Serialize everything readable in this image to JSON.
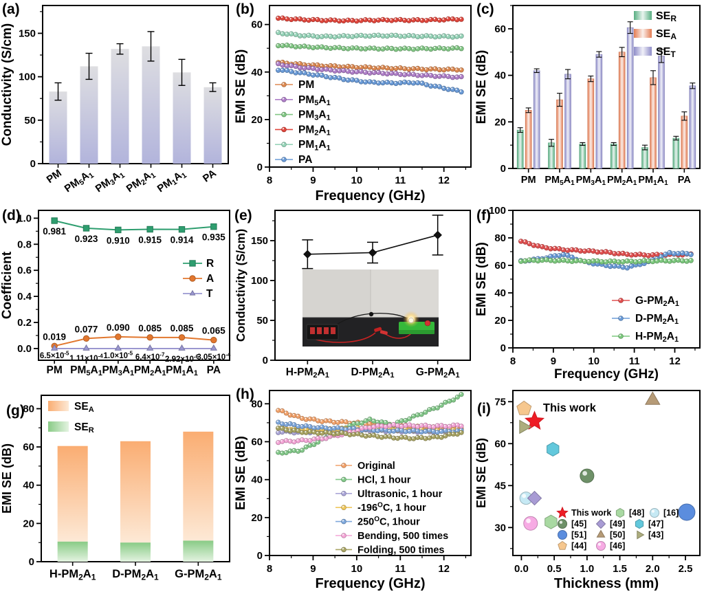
{
  "figure": {
    "background": "#ffffff",
    "panel_tags": [
      "(a)",
      "(b)",
      "(c)",
      "(d)",
      "(e)",
      "(f)",
      "(g)",
      "(h)",
      "(i)"
    ]
  },
  "chart_data": [
    {
      "id": "a",
      "tag": "(a)",
      "type": "bar",
      "render": "bar",
      "ylabel": "Conductivity (S/cm)",
      "categories": [
        "PM",
        "PM~5~A~1~",
        "PM~3~A~1~",
        "PM~2~A~1~",
        "PM~1~A~1~",
        "PA"
      ],
      "values": [
        83,
        112,
        132,
        135,
        105,
        88
      ],
      "errors": [
        10,
        15,
        6,
        17,
        15,
        5
      ],
      "ylim": [
        0,
        182
      ],
      "yticks": [
        0,
        50,
        100,
        150
      ],
      "yminor": 25,
      "bar_gradient": [
        "#DEDEE1",
        "#B2B4DC"
      ]
    },
    {
      "id": "b",
      "tag": "(b)",
      "type": "line",
      "render": "freq",
      "xlabel": "Frequency (GHz)",
      "ylabel": "EMI SE (dB)",
      "xlim": [
        8,
        12.62
      ],
      "xticks": [
        8,
        9,
        10,
        11,
        12
      ],
      "xminor": 0.5,
      "xrange": [
        8.2,
        12.4
      ],
      "ylim": [
        0,
        68
      ],
      "yticks": [
        0,
        20,
        40,
        60
      ],
      "yminor": 10,
      "series": [
        {
          "name": "PM",
          "color": "#DD8A52",
          "y": [
            44,
            43.2,
            42.6,
            42.2,
            41.9,
            41.6,
            41.3,
            41.1,
            41
          ]
        },
        {
          "name": "PM~5~A~1~",
          "color": "#AF7FC8",
          "y": [
            43.3,
            41.9,
            41,
            40.3,
            39.8,
            39.3,
            38.8,
            38.3,
            37.8
          ]
        },
        {
          "name": "PM~3~A~1~",
          "color": "#82C785",
          "y": [
            51.3,
            50.7,
            50.3,
            50,
            49.9,
            49.8,
            49.8,
            49.9,
            50
          ]
        },
        {
          "name": "PM~2~A~1~",
          "color": "#E0473D",
          "y": [
            62.6,
            62.1,
            61.8,
            61.6,
            61.8,
            61.9,
            61.8,
            62,
            62.3
          ]
        },
        {
          "name": "PM~1~A~1~",
          "color": "#97D4B9",
          "y": [
            56.5,
            55.4,
            54.9,
            55.1,
            55.3,
            55.3,
            55.1,
            55,
            54.9
          ]
        },
        {
          "name": "PA",
          "color": "#6B9BD7",
          "y": [
            41,
            39.6,
            38.3,
            36.8,
            35.7,
            35.4,
            35.6,
            33.7,
            31.8
          ]
        }
      ]
    },
    {
      "id": "c",
      "tag": "(c)",
      "type": "grouped-bar",
      "render": "groupbar",
      "ylabel": "EMI SE (dB)",
      "categories": [
        "PM",
        "PM~5~A~1~",
        "PM~3~A~1~",
        "PM~2~A~1~",
        "PM~1~A~1~",
        "PA"
      ],
      "ylim": [
        0,
        70
      ],
      "yticks": [
        0,
        20,
        40,
        60
      ],
      "yminor": 10,
      "series": [
        {
          "name": "SE~R~",
          "color": "#58AE82",
          "values": [
            16.5,
            11,
            10.5,
            10.5,
            9,
            13
          ],
          "errors": [
            1,
            1.5,
            0.6,
            0.6,
            1,
            0.8
          ]
        },
        {
          "name": "SE~A~",
          "color": "#E37C53",
          "values": [
            25,
            29.5,
            38.5,
            50,
            39,
            22.5
          ],
          "errors": [
            1,
            2.8,
            1.2,
            2,
            3,
            1.8
          ]
        },
        {
          "name": "SE~T~",
          "color": "#8E8CC8",
          "values": [
            42,
            40.5,
            49,
            60.5,
            48.3,
            35.5
          ],
          "errors": [
            0.8,
            2,
            1.2,
            2.5,
            2.8,
            1.2
          ]
        }
      ]
    },
    {
      "id": "d",
      "tag": "(d)",
      "type": "line",
      "render": "coef",
      "ylabel": "Coefficient",
      "categories": [
        "PM",
        "PM~5~A~1~",
        "PM~3~A~1~",
        "PM~2~A~1~",
        "PM~1~A~1~",
        "PA"
      ],
      "ylim": [
        -0.09,
        1.06
      ],
      "yticks": [
        0,
        0.2,
        0.4,
        0.6,
        0.8,
        1
      ],
      "ytick_labels": [
        "0.0",
        "0.2",
        "0.4",
        "0.6",
        "0.8",
        "1.0"
      ],
      "yminor": 0.1,
      "series": [
        {
          "name": "R",
          "marker": "square",
          "color": "#2E9E6F",
          "values": [
            0.981,
            0.923,
            0.91,
            0.915,
            0.914,
            0.935
          ],
          "labels": [
            "0.981",
            "0.923",
            "0.910",
            "0.915",
            "0.914",
            "0.935"
          ]
        },
        {
          "name": "A",
          "marker": "circle",
          "color": "#E2772E",
          "values": [
            0.019,
            0.077,
            0.09,
            0.085,
            0.085,
            0.065
          ],
          "labels": [
            "0.019",
            "0.077",
            "0.090",
            "0.085",
            "0.085",
            "0.065"
          ]
        },
        {
          "name": "T",
          "marker": "triangle",
          "color": "#9A97D0",
          "values": [
            0,
            0,
            0,
            0,
            0,
            0
          ],
          "labels": [
            "6.5×10^-5^",
            "1.11×10^-4^",
            "1.0×10^-5^",
            "6.4×10^-7^",
            "2.92×10^-6^",
            "3.05×10^-4^"
          ]
        }
      ]
    },
    {
      "id": "e",
      "tag": "(e)",
      "type": "line",
      "render": "linepts",
      "ylabel": "Conductivity (S/cm)",
      "categories": [
        "H-PM~2~A~1~",
        "D-PM~2~A~1~",
        "G-PM~2~A~1~"
      ],
      "values": [
        133,
        135,
        157
      ],
      "errors": [
        18,
        13,
        25
      ],
      "ylim": [
        0,
        188
      ],
      "yticks": [
        0,
        50,
        100,
        150
      ],
      "yminor": 25,
      "inset_photo_alt": "battery pack lighting a bulb on a green test board via red clip leads"
    },
    {
      "id": "f",
      "tag": "(f)",
      "type": "line",
      "render": "freq",
      "xlabel": "Frequency (GHz)",
      "ylabel": "EMI SE (dB)",
      "xlim": [
        8,
        12.62
      ],
      "xticks": [
        8,
        9,
        10,
        11,
        12
      ],
      "xminor": 0.5,
      "xrange": [
        8.2,
        12.4
      ],
      "ylim": [
        0,
        100
      ],
      "yticks": [
        0,
        20,
        40,
        60,
        80,
        100
      ],
      "yminor": 10,
      "series": [
        {
          "name": "G-PM~2~A~1~",
          "color": "#E05050",
          "y": [
            77.5,
            73.2,
            71.4,
            70.6,
            69.6,
            68,
            67.5,
            67.8,
            68
          ]
        },
        {
          "name": "D-PM~2~A~1~",
          "color": "#6B9BD7",
          "y": [
            63,
            65,
            68,
            62.5,
            60,
            58.5,
            62.5,
            69,
            68.3
          ]
        },
        {
          "name": "H-PM~2~A~1~",
          "color": "#7DC87E",
          "y": [
            63.3,
            63.8,
            63.4,
            63.1,
            62.8,
            62.8,
            63.1,
            63.4,
            63.4
          ]
        }
      ]
    },
    {
      "id": "g",
      "tag": "(g)",
      "type": "stacked-bar",
      "render": "stackbar",
      "ylabel": "EMI SE (dB)",
      "categories": [
        "H-PM~2~A~1~",
        "D-PM~2~A~1~",
        "G-PM~2~A~1~"
      ],
      "ylim": [
        0,
        87
      ],
      "yticks": [
        0,
        20,
        40,
        60,
        80
      ],
      "yminor": 10,
      "series": [
        {
          "name": "SE~A~",
          "gradient": [
            "#FAAD72",
            "#FDE9D6"
          ],
          "values": [
            50,
            53,
            57
          ]
        },
        {
          "name": "SE~R~",
          "gradient": [
            "#89CB86",
            "#E4F3E1"
          ],
          "values": [
            10.5,
            10,
            11
          ]
        }
      ],
      "totals": [
        60.5,
        63,
        68
      ]
    },
    {
      "id": "h",
      "tag": "(h)",
      "type": "line",
      "render": "freq",
      "xlabel": "Frequency (GHz)",
      "ylabel": "EMI SE (dB)",
      "xlim": [
        8,
        12.62
      ],
      "xticks": [
        8,
        9,
        10,
        11,
        12
      ],
      "xminor": 0.5,
      "xrange": [
        8.2,
        12.4
      ],
      "ylim": [
        0,
        87
      ],
      "yticks": [
        0,
        20,
        40,
        60,
        80
      ],
      "yminor": 10,
      "series": [
        {
          "name": "Original",
          "color": "#F2A26B",
          "y": [
            76.5,
            72.5,
            70.8,
            70.2,
            69.5,
            68.6,
            68,
            67.5,
            67.2
          ]
        },
        {
          "name": "HCl, 1 hour",
          "color": "#84C98B",
          "y": [
            54,
            55.5,
            61.5,
            68,
            71.5,
            69,
            73.5,
            78.5,
            84.5
          ]
        },
        {
          "name": "Ultrasonic, 1 hour",
          "color": "#ABA6D8",
          "y": [
            65.2,
            65,
            65.2,
            65.5,
            66,
            65.6,
            65.4,
            65.2,
            65.3
          ]
        },
        {
          "name": "-196^O^C, 1 hour",
          "color": "#EFC75E",
          "y": [
            67,
            66.8,
            66.6,
            66.8,
            67,
            66.4,
            66.2,
            65.8,
            66.2
          ]
        },
        {
          "name": "250^O^C, 1hour",
          "color": "#7FA8DC",
          "y": [
            70,
            68.2,
            67.2,
            66.8,
            66.2,
            65.8,
            65.6,
            65.4,
            65.6
          ]
        },
        {
          "name": "Bending, 500 times",
          "color": "#F4A6D7",
          "y": [
            60,
            60.5,
            61.8,
            64.5,
            67.8,
            68.6,
            68.4,
            68.2,
            68.6
          ]
        },
        {
          "name": "Folding, 500 times",
          "color": "#A9A565",
          "y": [
            67,
            65.2,
            64.6,
            64.2,
            63.2,
            62.2,
            61.8,
            62.4,
            64.8
          ]
        }
      ]
    },
    {
      "id": "i",
      "tag": "(i)",
      "type": "scatter",
      "render": "scatter",
      "xlabel": "Thickness (mm)",
      "ylabel": "EMI SE (dB)",
      "xlim": [
        -0.13,
        2.72
      ],
      "xticks": [
        0,
        0.5,
        1,
        1.5,
        2,
        2.5
      ],
      "xtick_labels": [
        "0.0",
        "0.5",
        "1.0",
        "1.5",
        "2.0",
        "2.5"
      ],
      "xminor": 0.25,
      "ylim": [
        20,
        79
      ],
      "yticks": [
        30,
        45,
        60,
        75
      ],
      "yminor": 7.5,
      "annotation": "This work",
      "points": [
        {
          "label": "This work",
          "marker": "star",
          "color": "#EE1C25",
          "x": 0.2,
          "y": 68,
          "size": 14
        },
        {
          "label": "[44]",
          "marker": "pentagon",
          "color": "#F6C78E",
          "x": 0.04,
          "y": 72.5,
          "size": 11
        },
        {
          "label": "[43]",
          "marker": "triright",
          "color": "#ADAD7E",
          "x": 0.03,
          "y": 66,
          "size": 11
        },
        {
          "label": "[47]",
          "marker": "hexagon",
          "color": "#62C8DC",
          "x": 0.48,
          "y": 58,
          "size": 10
        },
        {
          "label": "[45]",
          "marker": "sphere",
          "color": "#6E9168",
          "x": 1,
          "y": 48.5,
          "size": 10
        },
        {
          "label": "[16]",
          "marker": "sphere",
          "color": "#C6E9F4",
          "x": 0.07,
          "y": 40.5,
          "size": 9
        },
        {
          "label": "[49]",
          "marker": "diamond",
          "color": "#A89BD4",
          "x": 0.2,
          "y": 40.5,
          "size": 10
        },
        {
          "label": "[46]",
          "marker": "sphere",
          "color": "#F7ABE4",
          "x": 0.14,
          "y": 31.5,
          "size": 10
        },
        {
          "label": "[48]",
          "marker": "hexagon",
          "color": "#A9D9A2",
          "x": 0.45,
          "y": 32,
          "size": 10
        },
        {
          "label": "[50]",
          "marker": "triangle",
          "color": "#B69B77",
          "x": 2,
          "y": 75.5,
          "size": 12
        },
        {
          "label": "[51]",
          "marker": "circle",
          "color": "#5B8DDE",
          "x": 2.52,
          "y": 35.5,
          "size": 12
        }
      ],
      "legend_rows": [
        [
          {
            "marker": "star",
            "color": "#EE1C25",
            "label": "This work"
          },
          {
            "marker": "hexagon",
            "color": "#A9D9A2",
            "label": "[48]"
          },
          {
            "marker": "sphere",
            "color": "#C6E9F4",
            "label": "[16]"
          }
        ],
        [
          {
            "marker": "sphere",
            "color": "#6E9168",
            "label": "[45]"
          },
          {
            "marker": "diamond",
            "color": "#A89BD4",
            "label": "[49]"
          },
          {
            "marker": "hexagon",
            "color": "#62C8DC",
            "label": "[47]"
          }
        ],
        [
          {
            "marker": "circle",
            "color": "#5B8DDE",
            "label": "[51]"
          },
          {
            "marker": "triangle",
            "color": "#B69B77",
            "label": "[50]"
          },
          {
            "marker": "triright",
            "color": "#ADAD7E",
            "label": "[43]"
          }
        ],
        [
          {
            "marker": "pentagon",
            "color": "#F6C78E",
            "label": "[44]"
          },
          {
            "marker": "sphere",
            "color": "#F7ABE4",
            "label": "[46]"
          }
        ]
      ]
    }
  ]
}
